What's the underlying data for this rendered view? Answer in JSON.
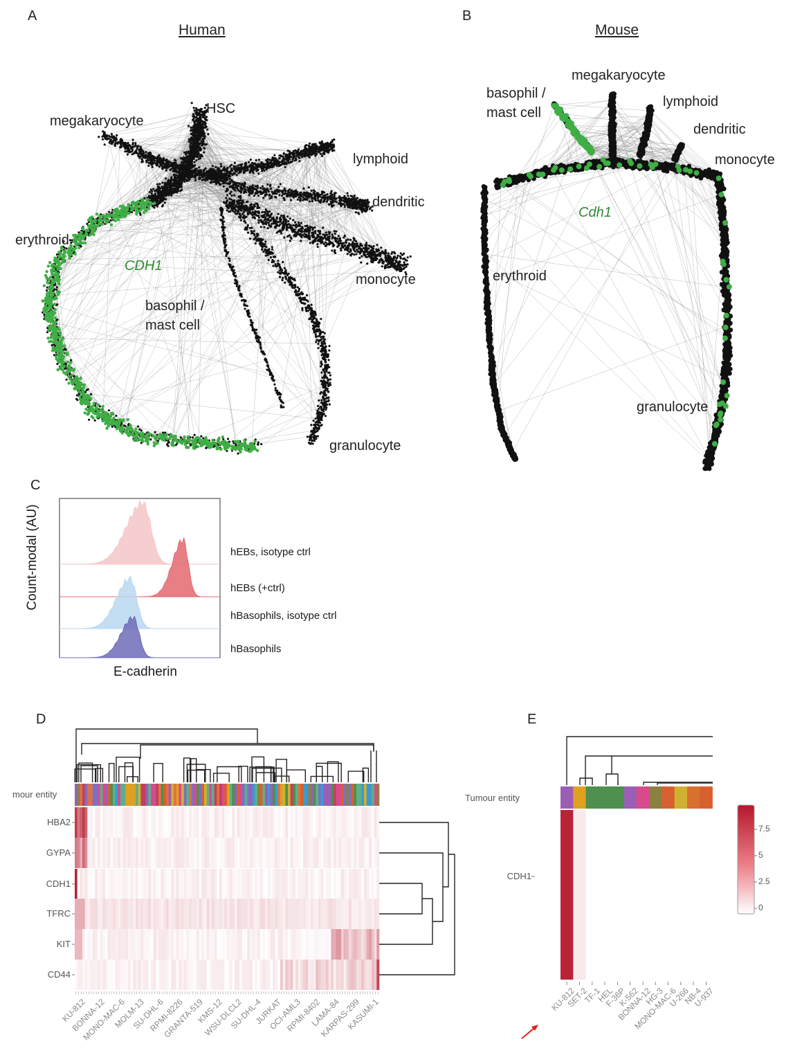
{
  "panels": {
    "a": {
      "letter": "A",
      "title": "Human",
      "gene": "CDH1",
      "labels": [
        "HSC",
        "megakaryocyte",
        "lymphoid",
        "dendritic",
        "erythroid",
        "monocyte",
        "basophil /",
        "mast cell",
        "granulocyte"
      ]
    },
    "b": {
      "letter": "B",
      "title": "Mouse",
      "gene": "Cdh1",
      "labels": [
        "megakaryocyte",
        "basophil /",
        "mast cell",
        "lymphoid",
        "dendritic",
        "monocyte",
        "erythroid",
        "granulocyte"
      ]
    },
    "c": {
      "letter": "C"
    },
    "d": {
      "letter": "D"
    },
    "e": {
      "letter": "E"
    }
  },
  "colors": {
    "network_edges": "#808080",
    "network_nodes": "#111111",
    "cdh1_green": "#3fae45",
    "gene_label_green": "#2e8b35",
    "heat_high": "#b5172b"
  },
  "chart_data": [
    {
      "id": "C",
      "type": "area",
      "xlabel": "E-cadherin",
      "ylabel": "Count-modal (AU)",
      "series": [
        {
          "name": "hEBs, isotype ctrl",
          "color": "#f6c6c8",
          "peak": 0.52
        },
        {
          "name": "hEBs (+ctrl)",
          "color": "#e3686f",
          "peak": 0.77
        },
        {
          "name": "hBasophils, isotype ctrl",
          "color": "#b9d7f0",
          "peak": 0.44
        },
        {
          "name": "hBasophils",
          "color": "#6f6cb8",
          "peak": 0.46
        }
      ]
    },
    {
      "id": "D",
      "type": "heatmap",
      "annotation_label": "mour entity",
      "rows": [
        "HBA2",
        "GYPA",
        "CDH1",
        "TFRC",
        "KIT",
        "CD44"
      ],
      "x_tick_labels": [
        "KU-812",
        "BONNA-12",
        "MONO-MAC-6",
        "MOLM-13",
        "SU-DHL-6",
        "RPMI-8226",
        "GRANTA-519",
        "KMS-12",
        "WSU-DLCL2",
        "SU-DHL-4",
        "JURKAT",
        "OCI-AML3",
        "RPMI-8402",
        "LAMA-84",
        "KARPAS-299",
        "KASUMI-1"
      ]
    },
    {
      "id": "E",
      "type": "heatmap",
      "annotation_label": "Tumour entity",
      "rows": [
        "CDH1"
      ],
      "columns": [
        "KU-812",
        "SET-2",
        "TF-1",
        "HEL",
        "F-36P",
        "K-562",
        "BONNA-12",
        "HG-3",
        "MONO-MAC-6",
        "U-266",
        "NB-4",
        "U-937"
      ],
      "values": [
        9.0,
        0.9,
        0.05,
        0.03,
        0.03,
        0.02,
        0.02,
        0.02,
        0.02,
        0.02,
        0.02,
        0.02
      ],
      "annotation_colors": [
        "#9a5fb5",
        "#e0a020",
        "#4f8f4f",
        "#4f8f4f",
        "#4f8f4f",
        "#9a5fb5",
        "#d94a8c",
        "#8a8040",
        "#d86030",
        "#d0b030",
        "#d87030",
        "#d86030"
      ],
      "colorbar_ticks": [
        "7.5",
        "5",
        "2.5",
        "0"
      ],
      "colorbar_values": [
        7.5,
        5,
        2.5,
        0
      ],
      "vmax": 9.5
    }
  ]
}
